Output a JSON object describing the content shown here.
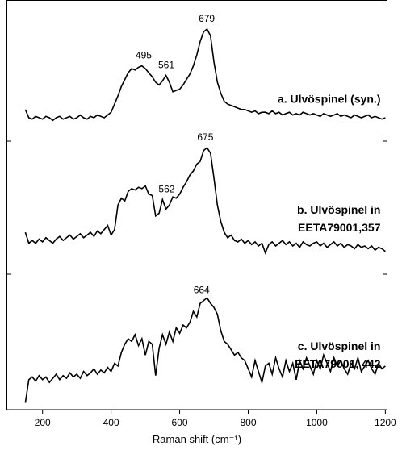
{
  "chart_data": {
    "type": "line",
    "stacked_panels": true,
    "xlabel": "Raman shift (cm⁻¹)",
    "xlim": [
      96,
      1205
    ],
    "xticks": [
      200,
      400,
      600,
      800,
      1000,
      1200
    ],
    "ylim": [
      0,
      100
    ],
    "color": "#000000",
    "x": [
      150,
      160,
      170,
      180,
      190,
      200,
      210,
      220,
      230,
      240,
      250,
      260,
      270,
      280,
      290,
      300,
      310,
      320,
      330,
      340,
      350,
      360,
      370,
      380,
      390,
      400,
      410,
      420,
      430,
      440,
      450,
      460,
      470,
      480,
      490,
      500,
      510,
      520,
      530,
      540,
      550,
      560,
      570,
      580,
      590,
      600,
      610,
      620,
      630,
      640,
      650,
      660,
      670,
      680,
      690,
      700,
      710,
      720,
      730,
      740,
      750,
      760,
      770,
      780,
      790,
      800,
      810,
      820,
      830,
      840,
      850,
      860,
      870,
      880,
      890,
      900,
      910,
      920,
      930,
      940,
      950,
      960,
      970,
      980,
      990,
      1000,
      1010,
      1020,
      1030,
      1040,
      1050,
      1060,
      1070,
      1080,
      1090,
      1100,
      1110,
      1120,
      1130,
      1140,
      1150,
      1160,
      1170,
      1180,
      1190,
      1200
    ],
    "series": [
      {
        "name": "a. Ulvöspinel (syn.)",
        "peaks": [
          495,
          561,
          679
        ],
        "values": [
          20,
          14,
          13,
          15,
          14,
          13,
          15,
          14,
          12,
          14,
          15,
          13,
          14,
          15,
          13,
          14,
          16,
          14,
          13,
          15,
          14,
          16,
          15,
          14,
          16,
          18,
          24,
          30,
          37,
          42,
          47,
          50,
          49,
          51,
          52,
          50,
          47,
          44,
          40,
          38,
          41,
          45,
          40,
          33,
          34,
          35,
          38,
          42,
          46,
          52,
          60,
          70,
          77,
          79,
          74,
          55,
          40,
          32,
          26,
          24,
          23,
          22,
          21,
          20,
          20,
          19,
          18,
          19,
          17,
          18,
          18,
          17,
          19,
          17,
          18,
          16,
          17,
          18,
          16,
          17,
          16,
          18,
          17,
          16,
          17,
          16,
          15,
          17,
          16,
          15,
          16,
          17,
          15,
          16,
          15,
          14,
          16,
          15,
          14,
          15,
          16,
          14,
          15,
          14,
          13,
          14
        ]
      },
      {
        "name": "b. Ulvöspinel in EETA79001,357",
        "peaks": [
          562,
          675
        ],
        "values": [
          30,
          22,
          24,
          22,
          25,
          23,
          26,
          24,
          22,
          25,
          27,
          24,
          26,
          28,
          25,
          27,
          29,
          26,
          28,
          30,
          27,
          31,
          29,
          32,
          35,
          28,
          32,
          50,
          55,
          53,
          60,
          62,
          61,
          63,
          62,
          64,
          58,
          57,
          42,
          44,
          54,
          47,
          50,
          56,
          55,
          58,
          63,
          67,
          72,
          75,
          80,
          82,
          90,
          92,
          88,
          70,
          50,
          38,
          30,
          26,
          28,
          24,
          23,
          25,
          22,
          24,
          21,
          23,
          20,
          22,
          15,
          21,
          23,
          20,
          22,
          24,
          21,
          23,
          20,
          22,
          19,
          23,
          21,
          20,
          22,
          23,
          20,
          22,
          19,
          21,
          23,
          20,
          22,
          19,
          21,
          20,
          18,
          21,
          19,
          20,
          18,
          20,
          17,
          19,
          18,
          16
        ]
      },
      {
        "name": "c. Ulvöspinel in EETA79001, 442",
        "peaks": [
          664
        ],
        "values": [
          5,
          22,
          24,
          21,
          25,
          22,
          24,
          20,
          23,
          26,
          22,
          25,
          23,
          27,
          24,
          26,
          23,
          28,
          25,
          27,
          30,
          26,
          29,
          27,
          31,
          28,
          34,
          32,
          42,
          48,
          52,
          50,
          55,
          47,
          52,
          40,
          50,
          48,
          25,
          45,
          55,
          48,
          57,
          50,
          60,
          56,
          62,
          60,
          64,
          72,
          68,
          78,
          80,
          82,
          78,
          75,
          70,
          58,
          50,
          48,
          44,
          40,
          42,
          38,
          36,
          30,
          24,
          36,
          28,
          20,
          32,
          34,
          26,
          38,
          30,
          24,
          36,
          28,
          34,
          22,
          36,
          30,
          38,
          32,
          26,
          36,
          30,
          40,
          34,
          28,
          38,
          32,
          36,
          30,
          26,
          34,
          30,
          38,
          28,
          32,
          36,
          30,
          26,
          34,
          30,
          32
        ]
      }
    ]
  }
}
